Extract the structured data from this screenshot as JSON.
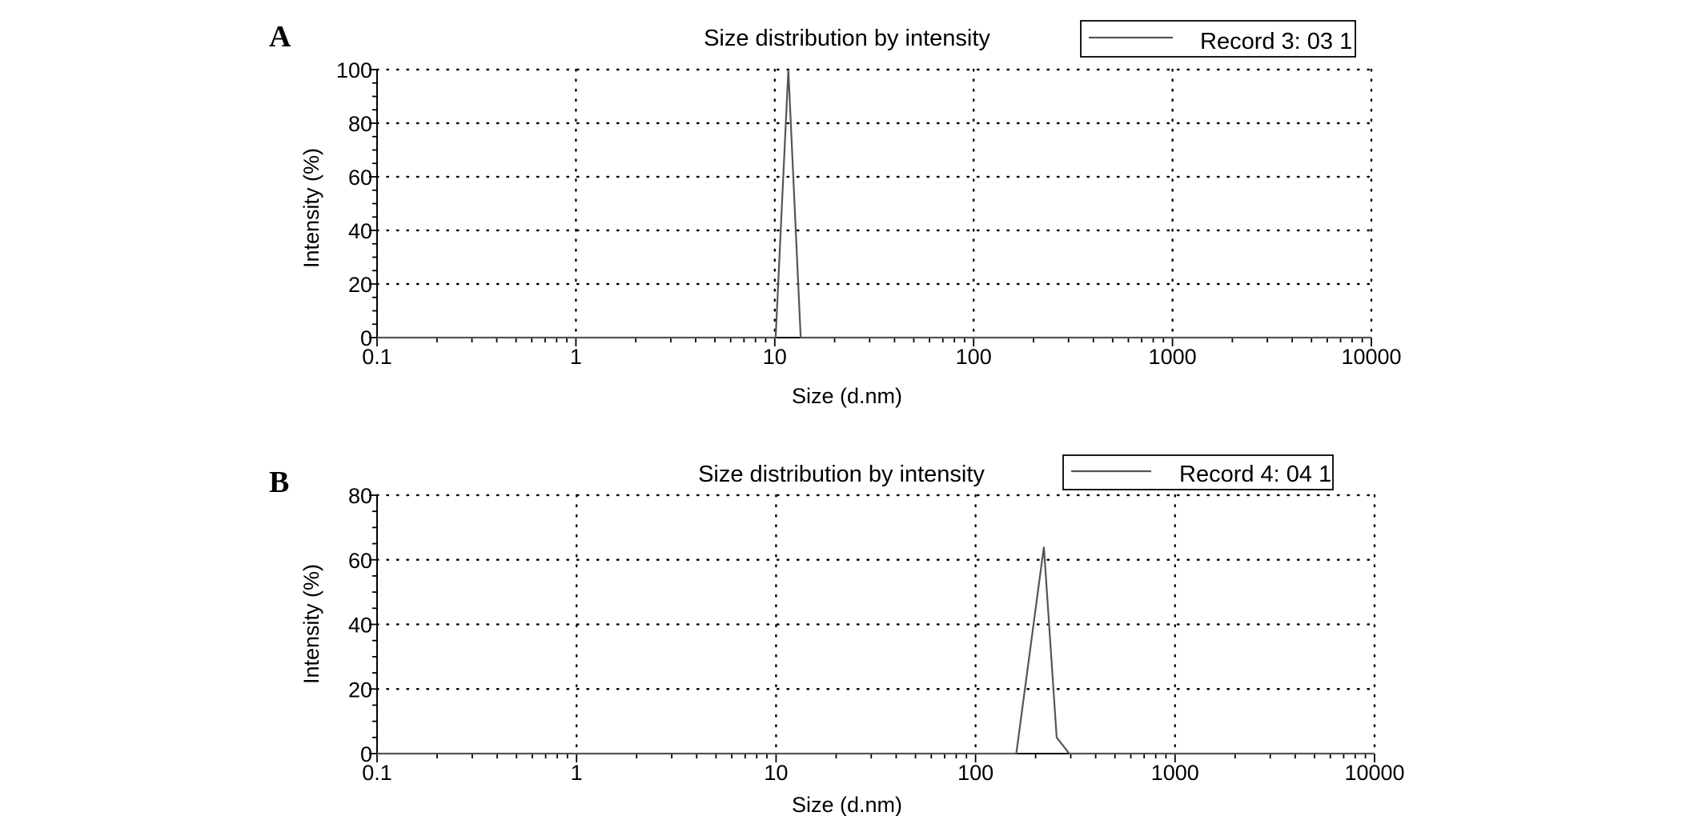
{
  "chart_data": [
    {
      "panel": "A",
      "type": "line",
      "title": "Size distribution by intensity",
      "xlabel": "Size (d.nm)",
      "ylabel": "Intensity (%)",
      "x_scale": "log",
      "xlim": [
        0.1,
        10000
      ],
      "ylim": [
        0,
        100
      ],
      "x_ticks": [
        "0.1",
        "1",
        "10",
        "100",
        "1000",
        "10000"
      ],
      "y_ticks": [
        "0",
        "20",
        "40",
        "60",
        "80",
        "100"
      ],
      "grid": true,
      "legend": "top-right",
      "series": [
        {
          "name": "Record 3: 03 1",
          "color": "#555555",
          "x": [
            0.1,
            10.1,
            11.7,
            13.5,
            10000
          ],
          "y": [
            0,
            0,
            100,
            0,
            0
          ]
        }
      ]
    },
    {
      "panel": "B",
      "type": "line",
      "title": "Size distribution by intensity",
      "xlabel": "Size (d.nm)",
      "ylabel": "Intensity (%)",
      "x_scale": "log",
      "xlim": [
        0.1,
        10000
      ],
      "ylim": [
        0,
        80
      ],
      "x_ticks": [
        "0.1",
        "1",
        "10",
        "100",
        "1000",
        "10000"
      ],
      "y_ticks": [
        "0",
        "20",
        "40",
        "60",
        "80"
      ],
      "grid": true,
      "legend": "top-right",
      "series": [
        {
          "name": "Record 4: 04 1",
          "color": "#555555",
          "x": [
            0.1,
            160,
            220,
            255,
            295,
            10000
          ],
          "y": [
            0,
            0,
            64,
            5,
            0,
            0
          ]
        }
      ]
    }
  ]
}
